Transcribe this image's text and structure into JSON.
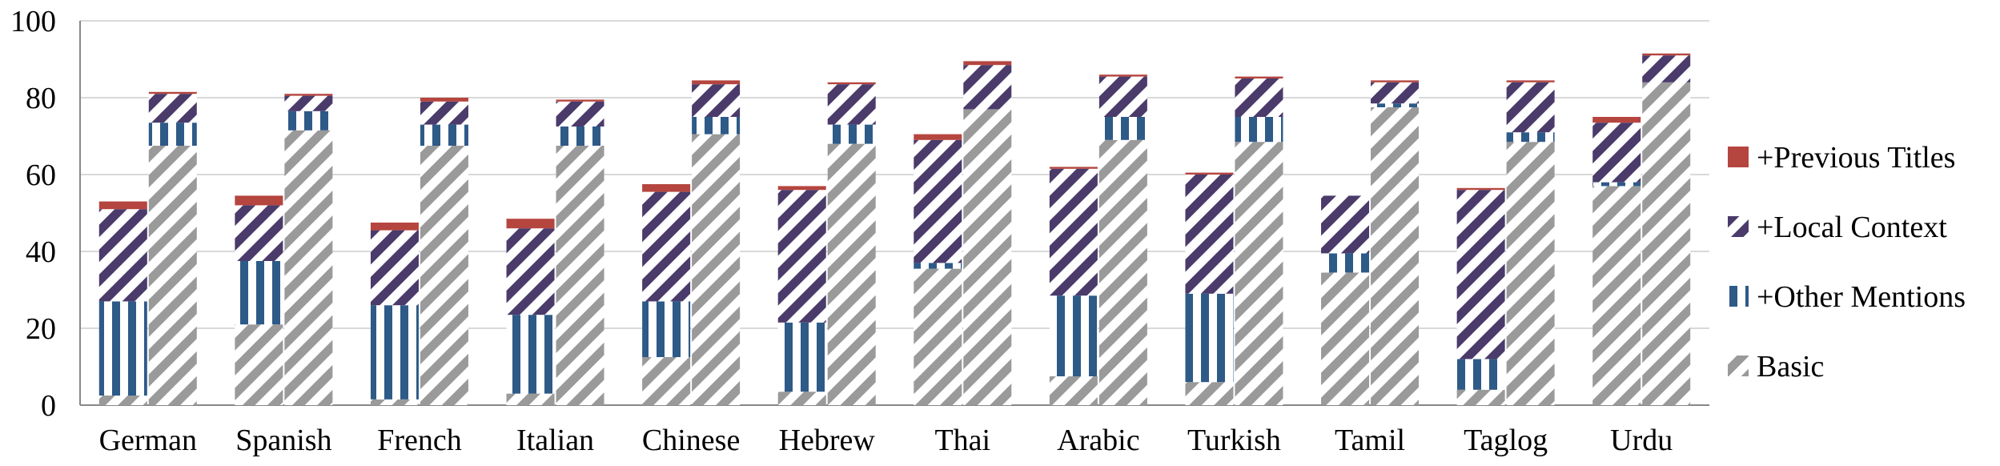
{
  "chart_data": {
    "type": "bar",
    "stacked": true,
    "bars_per_category": 2,
    "categories": [
      "German",
      "Spanish",
      "French",
      "Italian",
      "Chinese",
      "Hebrew",
      "Thai",
      "Arabic",
      "Turkish",
      "Tamil",
      "Taglog",
      "Urdu"
    ],
    "series": [
      {
        "name": "Basic",
        "color": "#999999",
        "pattern": "diagonal-hatch",
        "values": [
          [
            2.5,
            67.5
          ],
          [
            21,
            71.5
          ],
          [
            1.5,
            67.5
          ],
          [
            3,
            67.5
          ],
          [
            12.5,
            70.5
          ],
          [
            3.5,
            68
          ],
          [
            35.5,
            77
          ],
          [
            7.5,
            69
          ],
          [
            6,
            68.5
          ],
          [
            34.5,
            77.5
          ],
          [
            4,
            68.5
          ],
          [
            57,
            84
          ]
        ]
      },
      {
        "name": "+Other Mentions",
        "color": "#2E5A87",
        "pattern": "vertical-stripes",
        "values": [
          [
            24.5,
            6
          ],
          [
            16.5,
            5
          ],
          [
            24.5,
            5.5
          ],
          [
            20.5,
            5
          ],
          [
            14.5,
            4.5
          ],
          [
            18,
            5
          ],
          [
            1.5,
            0
          ],
          [
            21,
            6
          ],
          [
            23,
            6.5
          ],
          [
            5,
            1
          ],
          [
            8,
            2.5
          ],
          [
            1,
            0
          ]
        ]
      },
      {
        "name": "+Local Context",
        "color": "#4A3B6B",
        "pattern": "diagonal-hatch",
        "values": [
          [
            24,
            7.5
          ],
          [
            14.5,
            4
          ],
          [
            19.5,
            6
          ],
          [
            22.5,
            6.5
          ],
          [
            28.5,
            8.5
          ],
          [
            34.5,
            10.5
          ],
          [
            32,
            11.5
          ],
          [
            33,
            10.5
          ],
          [
            31,
            10
          ],
          [
            15,
            5.5
          ],
          [
            44,
            13
          ],
          [
            15.5,
            7
          ]
        ]
      },
      {
        "name": "+Previous Titles",
        "color": "#B33A3A",
        "pattern": "solid",
        "values": [
          [
            2,
            0.5
          ],
          [
            2.5,
            0.5
          ],
          [
            2,
            1
          ],
          [
            2.5,
            0.5
          ],
          [
            2,
            1
          ],
          [
            1,
            0.5
          ],
          [
            1.5,
            1
          ],
          [
            0.5,
            0.5
          ],
          [
            0.5,
            0.5
          ],
          [
            0,
            0.5
          ],
          [
            0.5,
            0.5
          ],
          [
            1.5,
            0.5
          ]
        ]
      }
    ],
    "legend_order": [
      "+Previous Titles",
      "+Local Context",
      "+Other Mentions",
      "Basic"
    ],
    "legend_position": "right",
    "yticks": [
      "0",
      "20",
      "40",
      "60",
      "80",
      "100"
    ],
    "ylim": [
      0,
      100
    ],
    "grid": "horizontal"
  }
}
